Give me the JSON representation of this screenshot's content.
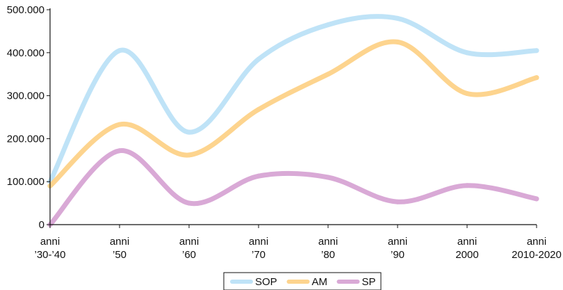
{
  "chart_data": {
    "type": "line",
    "categories": [
      [
        "anni",
        "’30-’40"
      ],
      [
        "anni",
        "’50"
      ],
      [
        "anni",
        "’60"
      ],
      [
        "anni",
        "’70"
      ],
      [
        "anni",
        "’80"
      ],
      [
        "anni",
        "’90"
      ],
      [
        "anni",
        "2000"
      ],
      [
        "anni",
        "2010-2020"
      ]
    ],
    "ylim": [
      0,
      500000
    ],
    "yticks": [
      {
        "value": 0,
        "label": "0"
      },
      {
        "value": 100000,
        "label": "100.000"
      },
      {
        "value": 200000,
        "label": "200.000"
      },
      {
        "value": 300000,
        "label": "300.000"
      },
      {
        "value": 400000,
        "label": "400.000"
      },
      {
        "value": 500000,
        "label": "500.000"
      }
    ],
    "grid": false,
    "legend_position": "bottom",
    "series": [
      {
        "name": "SOP",
        "color": "#bfe3f7",
        "values": [
          100000,
          405000,
          215000,
          385000,
          465000,
          480000,
          400000,
          405000
        ]
      },
      {
        "name": "AM",
        "color": "#fdd48e",
        "values": [
          90000,
          233000,
          162000,
          268000,
          350000,
          425000,
          305000,
          342000
        ]
      },
      {
        "name": "SP",
        "color": "#d9a9d6",
        "values": [
          0,
          172000,
          50000,
          113000,
          110000,
          53000,
          91000,
          60000
        ]
      }
    ]
  }
}
